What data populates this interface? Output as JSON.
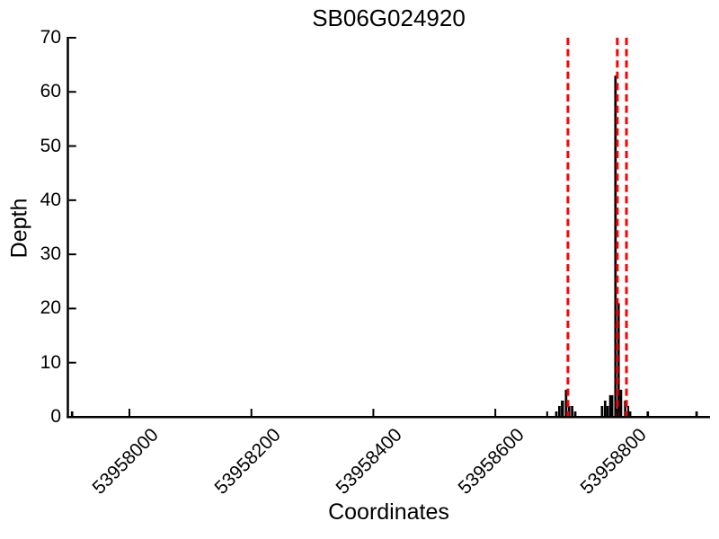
{
  "chart_data": {
    "type": "bar",
    "title": "SB06G024920",
    "xlabel": "Coordinates",
    "ylabel": "Depth",
    "xlim": [
      53957898,
      53958952
    ],
    "ylim": [
      0,
      70
    ],
    "yticks": [
      0,
      10,
      20,
      30,
      40,
      50,
      60,
      70
    ],
    "xticks": [
      53958000,
      53958200,
      53958400,
      53958600,
      53958800
    ],
    "grid": false,
    "legend": "none",
    "bar_color": "#000000",
    "axis_color": "#000000",
    "vline_color": "#fd0000",
    "vline_style": "dashed",
    "vlines": [
      53958719,
      53958800,
      53958815
    ],
    "bars": [
      {
        "x": 53957906,
        "depth": 1,
        "w": 4
      },
      {
        "x": 53958685,
        "depth": 1,
        "w": 3
      },
      {
        "x": 53958700,
        "depth": 1,
        "w": 4
      },
      {
        "x": 53958705,
        "depth": 2,
        "w": 4
      },
      {
        "x": 53958710,
        "depth": 3,
        "w": 5
      },
      {
        "x": 53958716,
        "depth": 5,
        "w": 4
      },
      {
        "x": 53958721,
        "depth": 2,
        "w": 4
      },
      {
        "x": 53958726,
        "depth": 2,
        "w": 4
      },
      {
        "x": 53958731,
        "depth": 1,
        "w": 4
      },
      {
        "x": 53958775,
        "depth": 2,
        "w": 4
      },
      {
        "x": 53958780,
        "depth": 3,
        "w": 4
      },
      {
        "x": 53958784,
        "depth": 2,
        "w": 4
      },
      {
        "x": 53958790,
        "depth": 4,
        "w": 7
      },
      {
        "x": 53958797,
        "depth": 63,
        "w": 4
      },
      {
        "x": 53958802,
        "depth": 21,
        "w": 4
      },
      {
        "x": 53958806,
        "depth": 5,
        "w": 4
      },
      {
        "x": 53958813,
        "depth": 3,
        "w": 4
      },
      {
        "x": 53958818,
        "depth": 2,
        "w": 3
      },
      {
        "x": 53958821,
        "depth": 1,
        "w": 4
      },
      {
        "x": 53958850,
        "depth": 1,
        "w": 4
      },
      {
        "x": 53958930,
        "depth": 1,
        "w": 4
      }
    ]
  }
}
